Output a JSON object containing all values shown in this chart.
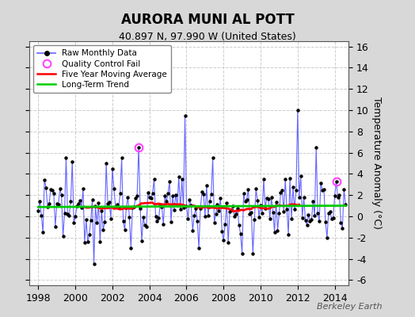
{
  "title": "AURORA MUNI AL POTT",
  "subtitle": "40.897 N, 97.990 W (United States)",
  "ylabel": "Temperature Anomaly (°C)",
  "xlim": [
    1997.5,
    2014.75
  ],
  "ylim": [
    -6.5,
    16.5
  ],
  "yticks_right": [
    -6,
    -4,
    -2,
    0,
    2,
    4,
    6,
    8,
    10,
    12,
    14,
    16
  ],
  "xticks": [
    1998,
    2000,
    2002,
    2004,
    2006,
    2008,
    2010,
    2012,
    2014
  ],
  "figure_bg": "#d8d8d8",
  "plot_bg": "#ffffff",
  "grid_color": "#cccccc",
  "raw_line_color": "#6666ff",
  "raw_marker_color": "#000000",
  "ma_color": "#ff0000",
  "trend_color": "#00cc00",
  "qc_fail_color": "#ff44ff",
  "watermark": "Berkeley Earth",
  "seed": 12345
}
